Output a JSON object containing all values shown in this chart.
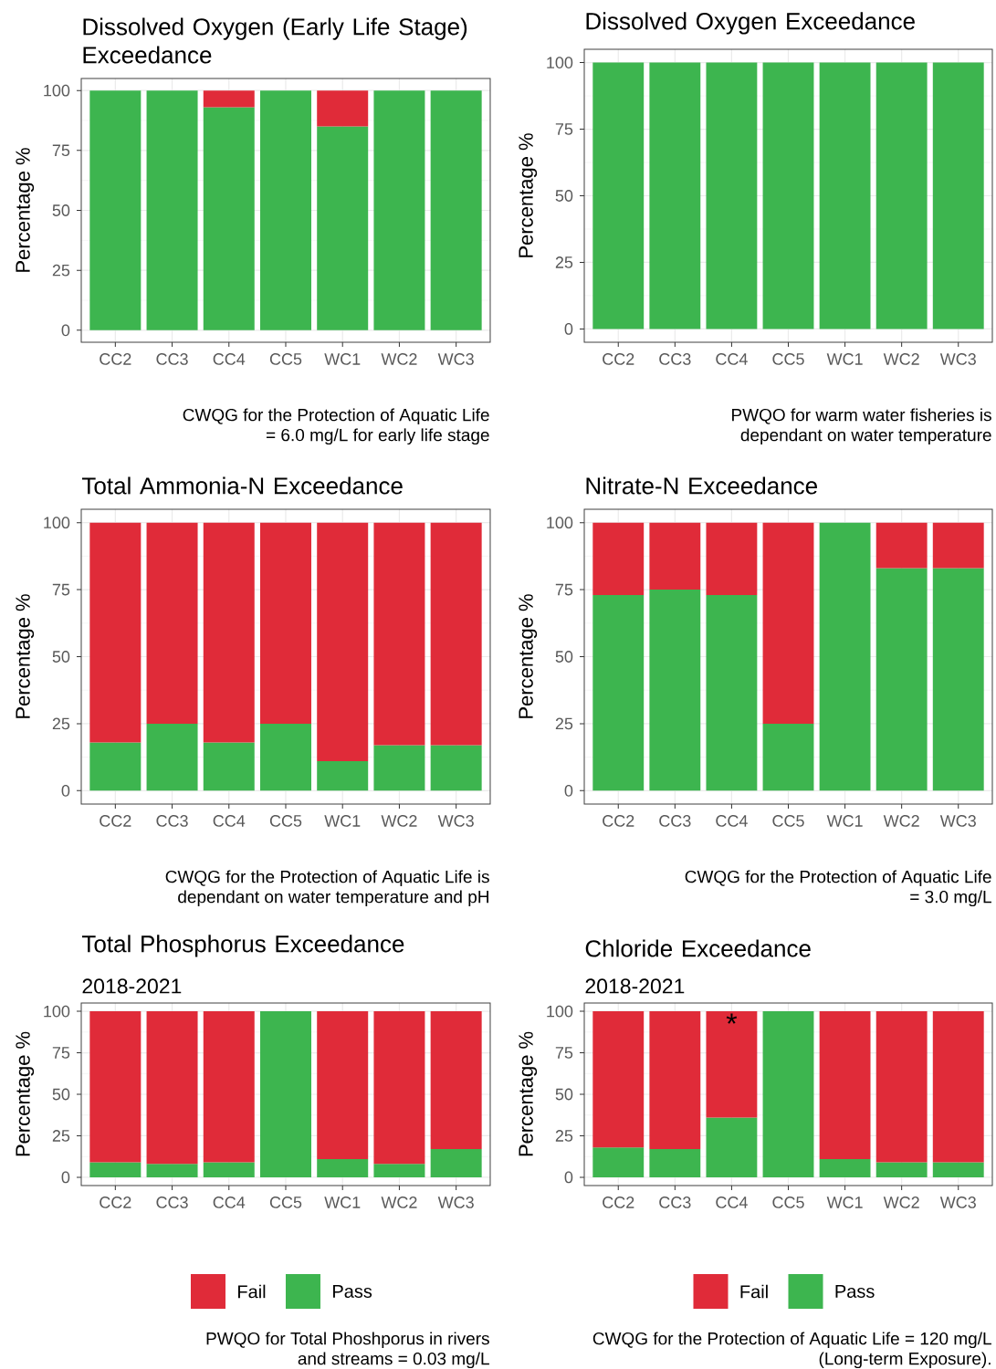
{
  "chart_data": [
    {
      "type": "bar",
      "title": "Dissolved Oxygen (Early Life Stage) Exceedance",
      "ylabel": "Percentage %",
      "categories": [
        "CC2",
        "CC3",
        "CC4",
        "CC5",
        "WC1",
        "WC2",
        "WC3"
      ],
      "stacked": true,
      "ylim": [
        -5,
        105
      ],
      "yticks": [
        0,
        25,
        50,
        75,
        100
      ],
      "grid": true,
      "series": [
        {
          "color": "#3db54f",
          "values": [
            100,
            100,
            93,
            100,
            85,
            100,
            100
          ]
        },
        {
          "color": "#e02b39",
          "values": [
            0,
            0,
            7,
            0,
            15,
            0,
            0
          ]
        }
      ],
      "annotations": [
        "CWQG for the Protection of Aquatic Life",
        "= 6.0 mg/L for early life stage"
      ]
    },
    {
      "type": "bar",
      "title": "Dissolved Oxygen Exceedance",
      "ylabel": "Percentage %",
      "categories": [
        "CC2",
        "CC3",
        "CC4",
        "CC5",
        "WC1",
        "WC2",
        "WC3"
      ],
      "stacked": true,
      "ylim": [
        -5,
        105
      ],
      "yticks": [
        0,
        25,
        50,
        75,
        100
      ],
      "grid": true,
      "series": [
        {
          "color": "#3db54f",
          "values": [
            100,
            100,
            100,
            100,
            100,
            100,
            100
          ]
        },
        {
          "color": "#e02b39",
          "values": [
            0,
            0,
            0,
            0,
            0,
            0,
            0
          ]
        }
      ],
      "annotations": [
        "PWQO for warm water fisheries is",
        "dependant on water temperature"
      ]
    },
    {
      "type": "bar",
      "title": "Total Ammonia-N Exceedance",
      "ylabel": "Percentage %",
      "categories": [
        "CC2",
        "CC3",
        "CC4",
        "CC5",
        "WC1",
        "WC2",
        "WC3"
      ],
      "stacked": true,
      "ylim": [
        -5,
        105
      ],
      "yticks": [
        0,
        25,
        50,
        75,
        100
      ],
      "grid": true,
      "series": [
        {
          "color": "#3db54f",
          "values": [
            18,
            25,
            18,
            25,
            11,
            17,
            17
          ]
        },
        {
          "color": "#e02b39",
          "values": [
            82,
            75,
            82,
            75,
            89,
            83,
            83
          ]
        }
      ],
      "annotations": [
        "CWQG for the Protection of Aquatic Life is",
        "dependant on water temperature and pH"
      ]
    },
    {
      "type": "bar",
      "title": "Nitrate-N Exceedance",
      "ylabel": "Percentage %",
      "categories": [
        "CC2",
        "CC3",
        "CC4",
        "CC5",
        "WC1",
        "WC2",
        "WC3"
      ],
      "stacked": true,
      "ylim": [
        -5,
        105
      ],
      "yticks": [
        0,
        25,
        50,
        75,
        100
      ],
      "grid": true,
      "series": [
        {
          "color": "#3db54f",
          "values": [
            73,
            75,
            73,
            25,
            100,
            83,
            83
          ]
        },
        {
          "color": "#e02b39",
          "values": [
            27,
            25,
            27,
            75,
            0,
            17,
            17
          ]
        }
      ],
      "annotations": [
        "CWQG for the Protection of Aquatic Life",
        "= 3.0 mg/L"
      ]
    },
    {
      "type": "bar",
      "title": "Total Phosphorus Exceedance",
      "subtitle": "2018-2021",
      "ylabel": "Percentage %",
      "categories": [
        "CC2",
        "CC3",
        "CC4",
        "CC5",
        "WC1",
        "WC2",
        "WC3"
      ],
      "stacked": true,
      "ylim": [
        -5,
        105
      ],
      "yticks": [
        0,
        25,
        50,
        75,
        100
      ],
      "grid": true,
      "legend": "bottom",
      "series": [
        {
          "name": "Pass",
          "color": "#3db54f",
          "values": [
            9,
            8,
            9,
            100,
            11,
            8,
            17
          ]
        },
        {
          "name": "Fail",
          "color": "#e02b39",
          "values": [
            91,
            92,
            91,
            0,
            89,
            92,
            83
          ]
        }
      ],
      "annotations": [
        "PWQO for Total Phoshporus in rivers",
        "and streams = 0.03 mg/L"
      ]
    },
    {
      "type": "bar",
      "title": "Chloride Exceedance",
      "subtitle": "2018-2021",
      "ylabel": "Percentage %",
      "categories": [
        "CC2",
        "CC3",
        "CC4",
        "CC5",
        "WC1",
        "WC2",
        "WC3"
      ],
      "stacked": true,
      "ylim": [
        -5,
        105
      ],
      "yticks": [
        0,
        25,
        50,
        75,
        100
      ],
      "grid": true,
      "legend": "bottom",
      "series": [
        {
          "name": "Pass",
          "color": "#3db54f",
          "values": [
            18,
            17,
            36,
            100,
            11,
            9,
            9
          ]
        },
        {
          "name": "Fail",
          "color": "#e02b39",
          "values": [
            82,
            83,
            64,
            0,
            89,
            91,
            91
          ]
        }
      ],
      "annotations": [
        {
          "text": "*",
          "x": "CC4",
          "y": 100
        },
        "CWQG for the Protection of Aquatic Life  = 120 mg/L",
        "(Long-term Exposure)."
      ]
    }
  ]
}
